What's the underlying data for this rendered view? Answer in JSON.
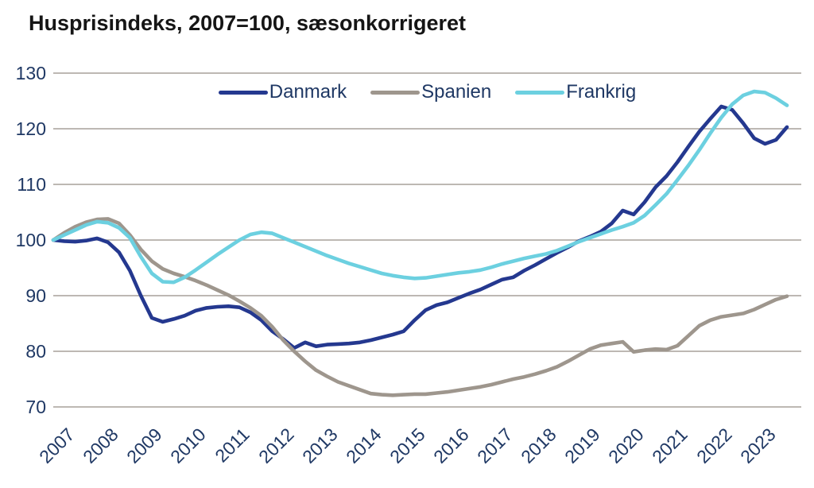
{
  "title": "Husprisindeks, 2007=100, sæsonkorrigeret",
  "colors": {
    "title_text": "#151515",
    "axis_label_text": "#1F3864",
    "gridline": "#A7A19A",
    "background": "#FFFFFF"
  },
  "chart_data": {
    "type": "line",
    "title": "Husprisindeks, 2007=100, sæsonkorrigeret",
    "xlabel": "",
    "ylabel": "",
    "x_frequency": "quarterly",
    "x_range": [
      "2007Q1",
      "2023Q4"
    ],
    "x_ticks": [
      2007,
      2008,
      2009,
      2010,
      2011,
      2012,
      2013,
      2014,
      2015,
      2016,
      2017,
      2018,
      2019,
      2020,
      2021,
      2022,
      2023
    ],
    "y_ticks": [
      70,
      80,
      90,
      100,
      110,
      120,
      130
    ],
    "ylim": [
      70,
      130
    ],
    "grid": "horizontal",
    "legend_position": "top-center",
    "series": [
      {
        "name": "Danmark",
        "color": "#24388F",
        "values": [
          100.0,
          99.8,
          99.7,
          99.9,
          100.3,
          99.6,
          97.8,
          94.5,
          90.0,
          86.0,
          85.3,
          85.8,
          86.4,
          87.3,
          87.8,
          88.0,
          88.1,
          87.9,
          87.0,
          85.6,
          83.6,
          82.2,
          80.6,
          81.6,
          80.9,
          81.2,
          81.3,
          81.4,
          81.6,
          82.0,
          82.5,
          83.0,
          83.6,
          85.6,
          87.4,
          88.3,
          88.8,
          89.6,
          90.4,
          91.1,
          92.0,
          92.9,
          93.3,
          94.5,
          95.5,
          96.6,
          97.7,
          98.7,
          99.8,
          100.6,
          101.5,
          103.0,
          105.3,
          104.6,
          106.8,
          109.5,
          111.5,
          114.0,
          116.8,
          119.5,
          121.8,
          124.0,
          123.4,
          121.0,
          118.3,
          117.3,
          118.0,
          120.3
        ]
      },
      {
        "name": "Spanien",
        "color": "#9E968D",
        "values": [
          100.0,
          101.3,
          102.4,
          103.2,
          103.7,
          103.8,
          103.0,
          100.9,
          98.3,
          96.2,
          94.8,
          94.0,
          93.4,
          92.7,
          91.9,
          91.0,
          90.1,
          89.0,
          87.8,
          86.4,
          84.4,
          82.0,
          80.0,
          78.2,
          76.6,
          75.5,
          74.5,
          73.8,
          73.1,
          72.4,
          72.2,
          72.1,
          72.2,
          72.3,
          72.3,
          72.5,
          72.7,
          73.0,
          73.3,
          73.6,
          74.0,
          74.5,
          75.0,
          75.4,
          75.9,
          76.5,
          77.2,
          78.2,
          79.3,
          80.4,
          81.1,
          81.4,
          81.7,
          79.9,
          80.2,
          80.4,
          80.3,
          81.0,
          82.8,
          84.6,
          85.6,
          86.2,
          86.5,
          86.8,
          87.5,
          88.4,
          89.3,
          89.9
        ]
      },
      {
        "name": "Frankrig",
        "color": "#6CD0E0",
        "values": [
          100.0,
          100.9,
          101.8,
          102.7,
          103.3,
          103.1,
          102.2,
          100.4,
          97.0,
          94.0,
          92.5,
          92.4,
          93.3,
          94.6,
          96.0,
          97.4,
          98.7,
          100.0,
          101.0,
          101.4,
          101.2,
          100.4,
          99.6,
          98.8,
          98.0,
          97.2,
          96.5,
          95.8,
          95.2,
          94.6,
          94.0,
          93.6,
          93.3,
          93.1,
          93.2,
          93.5,
          93.8,
          94.1,
          94.3,
          94.6,
          95.1,
          95.7,
          96.2,
          96.7,
          97.1,
          97.5,
          98.1,
          98.9,
          99.7,
          100.4,
          101.1,
          101.8,
          102.4,
          103.1,
          104.4,
          106.3,
          108.3,
          110.8,
          113.4,
          116.2,
          119.2,
          122.0,
          124.4,
          126.0,
          126.7,
          126.5,
          125.5,
          124.2
        ]
      }
    ]
  }
}
